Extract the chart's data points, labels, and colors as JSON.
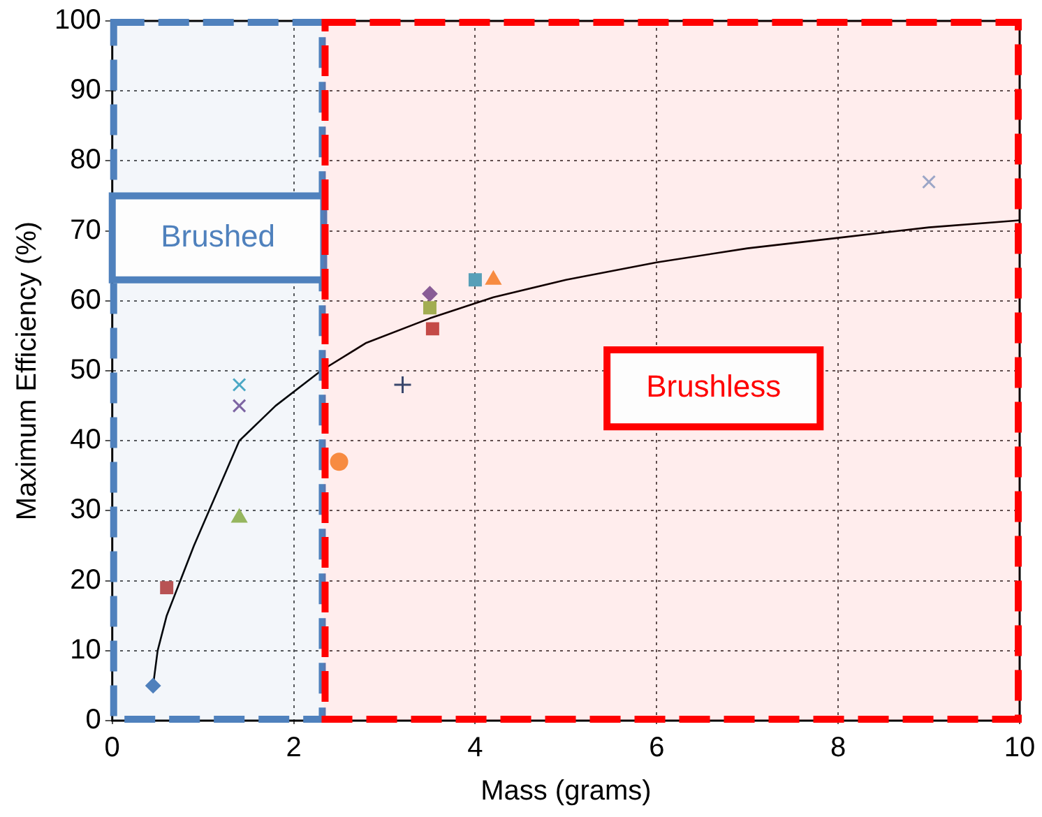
{
  "chart_data": {
    "type": "scatter",
    "xlabel": "Mass (grams)",
    "ylabel": "Maximum Efficiency (%)",
    "xlim": [
      0,
      10
    ],
    "xticks": [
      0,
      2,
      4,
      6,
      8,
      10
    ],
    "ylim": [
      0,
      100
    ],
    "yticks": [
      0,
      10,
      20,
      30,
      40,
      50,
      60,
      70,
      80,
      90,
      100
    ],
    "grid": true,
    "legend": false,
    "series": [
      {
        "color": "#4f81bd",
        "marker": "diamond",
        "x": [
          0.45
        ],
        "values": [
          5
        ]
      },
      {
        "color": "#c0504d",
        "marker": "square",
        "x": [
          0.6
        ],
        "values": [
          19
        ]
      },
      {
        "color": "#9bbb59",
        "marker": "triangle",
        "x": [
          1.4
        ],
        "values": [
          29
        ]
      },
      {
        "color": "#8064a2",
        "marker": "cross",
        "x": [
          1.4
        ],
        "values": [
          45
        ]
      },
      {
        "color": "#4bacc6",
        "marker": "cross",
        "x": [
          1.4
        ],
        "values": [
          48
        ]
      },
      {
        "color": "#f79646",
        "marker": "circle",
        "x": [
          2.5
        ],
        "values": [
          37
        ]
      },
      {
        "color": "#2c4d75",
        "marker": "plus",
        "x": [
          3.2
        ],
        "values": [
          48
        ]
      },
      {
        "color": "#c0504d",
        "marker": "square",
        "x": [
          3.53
        ],
        "values": [
          56
        ]
      },
      {
        "color": "#9bbb59",
        "marker": "square",
        "x": [
          3.5
        ],
        "values": [
          59
        ]
      },
      {
        "color": "#8064a2",
        "marker": "diamond",
        "x": [
          3.5
        ],
        "values": [
          61
        ]
      },
      {
        "color": "#4bacc6",
        "marker": "square",
        "x": [
          4.0
        ],
        "values": [
          63
        ]
      },
      {
        "color": "#f79646",
        "marker": "triangle",
        "x": [
          4.2
        ],
        "values": [
          63
        ]
      },
      {
        "color": "#95b3d7",
        "marker": "cross",
        "x": [
          9.0
        ],
        "values": [
          77
        ]
      },
      {
        "type": "line",
        "color": "#000000",
        "marker": "none",
        "x": [
          0.45,
          0.5,
          0.6,
          0.9,
          1.4,
          1.8,
          2.3,
          2.8,
          3.5,
          4.2,
          5,
          6,
          7,
          8,
          9,
          10
        ],
        "values": [
          5,
          10,
          15,
          25,
          40,
          45,
          50,
          54,
          57.5,
          60.5,
          63,
          65.5,
          67.5,
          69,
          70.5,
          71.5
        ]
      }
    ],
    "bands": [
      {
        "axis": "x",
        "from": 0,
        "to": 2.33,
        "label": "Brushed",
        "color": "#4f81bd"
      },
      {
        "axis": "x",
        "from": 2.33,
        "to": 10,
        "label": "Brushless",
        "color": "#ff0000"
      }
    ]
  }
}
